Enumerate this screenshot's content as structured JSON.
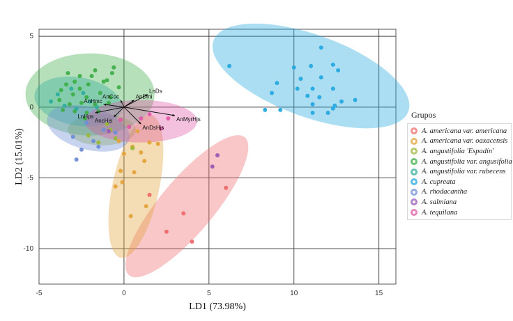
{
  "chart_data": {
    "type": "scatter",
    "xlabel": "LD1 (73.98%)",
    "ylabel": "LD2 (15.01%)",
    "xlim": [
      -5,
      16
    ],
    "ylim": [
      -12.5,
      5.5
    ],
    "xticks": [
      -5,
      0,
      5,
      10,
      15
    ],
    "yticks": [
      5,
      0,
      -5,
      -10
    ],
    "legend_title": "Grupos",
    "series": [
      {
        "name": "A. americana var. americana",
        "color": "#ef6b6b",
        "ellipse": {
          "cx": 3.7,
          "cy": -7.0,
          "rx": 5.3,
          "ry": 1.9,
          "angle": 50
        },
        "points": [
          [
            6.0,
            -5.7
          ],
          [
            3.5,
            -7.5
          ],
          [
            2.5,
            -8.8
          ],
          [
            4.0,
            -9.5
          ],
          [
            1.5,
            -6.2
          ]
        ]
      },
      {
        "name": "A. americana var. oaxacensis",
        "color": "#e3a33b",
        "ellipse": {
          "cx": 0.7,
          "cy": -5.6,
          "rx": 4.3,
          "ry": 1.65,
          "angle": 78
        },
        "points": [
          [
            0.0,
            -3.3
          ],
          [
            -0.2,
            -4.5
          ],
          [
            0.6,
            -4.6
          ],
          [
            -0.1,
            -5.3
          ],
          [
            -0.5,
            -5.6
          ],
          [
            1.3,
            -7.0
          ],
          [
            0.4,
            -7.7
          ],
          [
            1.5,
            -2.5
          ],
          [
            1.0,
            -3.2
          ],
          [
            0.8,
            -1.7
          ],
          [
            2.0,
            -2.6
          ],
          [
            0.5,
            -2.8
          ],
          [
            -0.3,
            -2.4
          ],
          [
            1.2,
            -3.8
          ]
        ]
      },
      {
        "name": "A. angustifolia 'Espadín'",
        "color": "#9ab83a",
        "ellipse": {
          "cx": -1.3,
          "cy": -1.6,
          "rx": 2.0,
          "ry": 1.1,
          "angle": 0
        },
        "points": [
          [
            -1.5,
            -2.5
          ],
          [
            -0.8,
            -1.6
          ],
          [
            -2.1,
            -2.0
          ],
          [
            0.5,
            -2.9
          ],
          [
            -1.0,
            -1.2
          ],
          [
            -0.5,
            -2.2
          ]
        ]
      },
      {
        "name": "A. angustifolia var. angusifolia",
        "color": "#3fae49",
        "ellipse": {
          "cx": -2.0,
          "cy": 0.9,
          "rx": 3.8,
          "ry": 2.9,
          "angle": 0
        },
        "points": [
          [
            -3.3,
            2.4
          ],
          [
            -2.6,
            2.2
          ],
          [
            -1.7,
            2.6
          ],
          [
            -0.7,
            2.4
          ],
          [
            -0.6,
            2.8
          ],
          [
            -2.9,
            1.8
          ],
          [
            -2.1,
            1.6
          ],
          [
            -1.2,
            1.8
          ],
          [
            -0.3,
            1.4
          ],
          [
            -3.7,
            1.2
          ],
          [
            -3.0,
            0.9
          ],
          [
            -2.2,
            0.7
          ],
          [
            -1.4,
            1.0
          ],
          [
            -0.8,
            0.7
          ],
          [
            -3.8,
            0.5
          ],
          [
            -3.2,
            0.2
          ],
          [
            -2.5,
            0.3
          ],
          [
            -1.7,
            0.2
          ],
          [
            -0.9,
            0.3
          ],
          [
            -3.6,
            -0.2
          ],
          [
            -2.9,
            -0.3
          ],
          [
            -2.2,
            -0.4
          ],
          [
            -1.5,
            -0.3
          ],
          [
            -2.6,
            1.3
          ],
          [
            -1.9,
            2.2
          ],
          [
            -3.4,
            1.6
          ],
          [
            -1.0,
            1.9
          ],
          [
            -2.3,
            -0.8
          ]
        ]
      },
      {
        "name": "A. angustifolia var. rubecens",
        "color": "#2fae9b",
        "ellipse": {
          "cx": -2.7,
          "cy": 0.4,
          "rx": 2.6,
          "ry": 1.7,
          "angle": -10
        },
        "points": [
          [
            -4.3,
            0.4
          ],
          [
            -3.5,
            0.1
          ],
          [
            -2.8,
            -0.1
          ],
          [
            -2.0,
            0.4
          ],
          [
            -3.9,
            0.9
          ],
          [
            -1.6,
            0.0
          ],
          [
            -2.4,
            1.0
          ],
          [
            -3.1,
            1.3
          ]
        ]
      },
      {
        "name": "A. cupreata",
        "color": "#26a9e0",
        "ellipse": {
          "cx": 11.0,
          "cy": 2.2,
          "rx": 6.1,
          "ry": 2.9,
          "angle": -20
        },
        "points": [
          [
            11.6,
            4.2
          ],
          [
            6.2,
            2.9
          ],
          [
            11.0,
            2.9
          ],
          [
            12.3,
            3.0
          ],
          [
            10.0,
            2.8
          ],
          [
            12.6,
            2.6
          ],
          [
            10.4,
            2.0
          ],
          [
            11.6,
            2.1
          ],
          [
            9.0,
            1.7
          ],
          [
            8.7,
            1.0
          ],
          [
            10.2,
            1.3
          ],
          [
            11.1,
            1.3
          ],
          [
            12.3,
            1.3
          ],
          [
            10.8,
            0.8
          ],
          [
            11.5,
            0.7
          ],
          [
            12.8,
            0.4
          ],
          [
            11.1,
            0.2
          ],
          [
            12.4,
            0.1
          ],
          [
            13.6,
            0.5
          ],
          [
            8.3,
            -0.2
          ],
          [
            9.2,
            -0.2
          ],
          [
            11.1,
            -0.4
          ],
          [
            12.3,
            -0.1
          ],
          [
            12.0,
            -0.4
          ]
        ]
      },
      {
        "name": "A. rhodacantha",
        "color": "#6f8fd6",
        "ellipse": {
          "cx": -2.1,
          "cy": -1.5,
          "rx": 2.5,
          "ry": 1.5,
          "angle": -15
        },
        "points": [
          [
            -2.8,
            -3.7
          ],
          [
            -2.5,
            -3.0
          ],
          [
            -1.8,
            -2.4
          ],
          [
            -3.0,
            -2.1
          ],
          [
            -1.2,
            -1.6
          ],
          [
            -2.2,
            -1.1
          ],
          [
            -0.5,
            -1.8
          ],
          [
            -1.5,
            -2.8
          ]
        ]
      },
      {
        "name": "A. salmiana",
        "color": "#9b59b6",
        "ellipse": null,
        "points": [
          [
            5.5,
            -3.4
          ],
          [
            5.2,
            -4.2
          ],
          [
            -0.9,
            -1.7
          ]
        ]
      },
      {
        "name": "A. tequilana",
        "color": "#e05aa8",
        "ellipse": {
          "cx": 1.0,
          "cy": -1.0,
          "rx": 3.3,
          "ry": 1.5,
          "angle": 0
        },
        "points": [
          [
            1.0,
            -0.8
          ],
          [
            2.2,
            -1.5
          ],
          [
            0.3,
            -1.4
          ],
          [
            1.5,
            -0.5
          ],
          [
            -0.2,
            -0.9
          ],
          [
            2.6,
            -0.8
          ]
        ]
      }
    ],
    "loadings": [
      {
        "label": "LnDs",
        "x": 1.4,
        "y": 0.9
      },
      {
        "label": "AnMyrHjs",
        "x": 3.0,
        "y": -0.6
      },
      {
        "label": "AnDsHjs",
        "x": 1.0,
        "y": -1.2
      },
      {
        "label": "LnHps",
        "x": -1.7,
        "y": -0.4
      },
      {
        "label": "AnHmc",
        "x": -1.2,
        "y": 0.2
      },
      {
        "label": "AncHjs",
        "x": -0.6,
        "y": -0.7
      },
      {
        "label": "AnDmi",
        "x": 0.6,
        "y": 0.5
      },
      {
        "label": "AnCoc",
        "x": -0.2,
        "y": 0.5
      }
    ]
  }
}
